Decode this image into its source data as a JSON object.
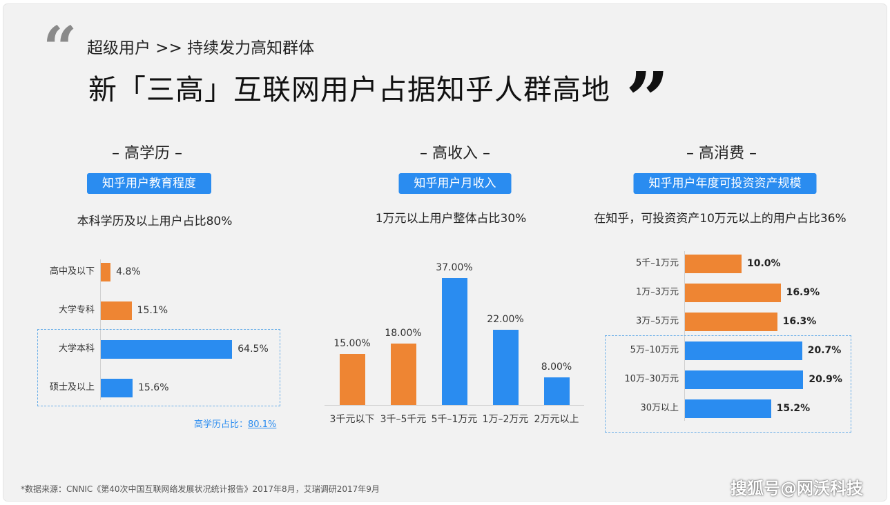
{
  "header": {
    "quote_open": "“",
    "quote_close": "”",
    "subtitle": "超级用户  >> 持续发力高知群体",
    "title": "新「三高」互联网用户占据知乎人群高地"
  },
  "colors": {
    "orange": "#ee8533",
    "blue": "#2a8cf0"
  },
  "chart_data": [
    {
      "type": "bar",
      "orientation": "horizontal",
      "title": "– 高学历 –",
      "badge": "知乎用户教育程度",
      "subtitle": "本科学历及以上用户占比80%",
      "categories": [
        "高中及以下",
        "大学专科",
        "大学本科",
        "硕士及以上"
      ],
      "values": [
        4.8,
        15.1,
        64.5,
        15.6
      ],
      "value_labels": [
        "4.8%",
        "15.1%",
        "64.5%",
        "15.6%"
      ],
      "colors": [
        "orange",
        "orange",
        "blue",
        "blue"
      ],
      "highlight_note_prefix": "高学历占比：",
      "highlight_note_value": "80.1%"
    },
    {
      "type": "bar",
      "orientation": "vertical",
      "title": "– 高收入 –",
      "badge": "知乎用户月收入",
      "subtitle": "1万元以上用户整体占比30%",
      "categories": [
        "3千元以下",
        "3千–5千元",
        "5千–1万元",
        "1万–2万元",
        "2万元以上"
      ],
      "values": [
        15.0,
        18.0,
        37.0,
        22.0,
        8.0
      ],
      "value_labels": [
        "15.00%",
        "18.00%",
        "37.00%",
        "22.00%",
        "8.00%"
      ],
      "colors": [
        "orange",
        "orange",
        "blue",
        "blue",
        "blue"
      ]
    },
    {
      "type": "bar",
      "orientation": "horizontal",
      "title": "– 高消费 –",
      "badge": "知乎用户年度可投资资产规模",
      "subtitle": "在知乎，可投资资产10万元以上的用户占比36%",
      "categories": [
        "5千–1万元",
        "1万–3万元",
        "3万–5万元",
        "5万–10万元",
        "10万–30万元",
        "30万以上"
      ],
      "values": [
        10.0,
        16.9,
        16.3,
        20.7,
        20.9,
        15.2
      ],
      "value_labels": [
        "10.0%",
        "16.9%",
        "16.3%",
        "20.7%",
        "20.9%",
        "15.2%"
      ],
      "colors": [
        "orange",
        "orange",
        "orange",
        "blue",
        "blue",
        "blue"
      ]
    }
  ],
  "footer": {
    "source": "*数据来源：CNNIC《第40次中国互联网络发展状况统计报告》2017年8月，艾瑞调研2017年9月",
    "watermark": "搜狐号@网沃科技"
  }
}
